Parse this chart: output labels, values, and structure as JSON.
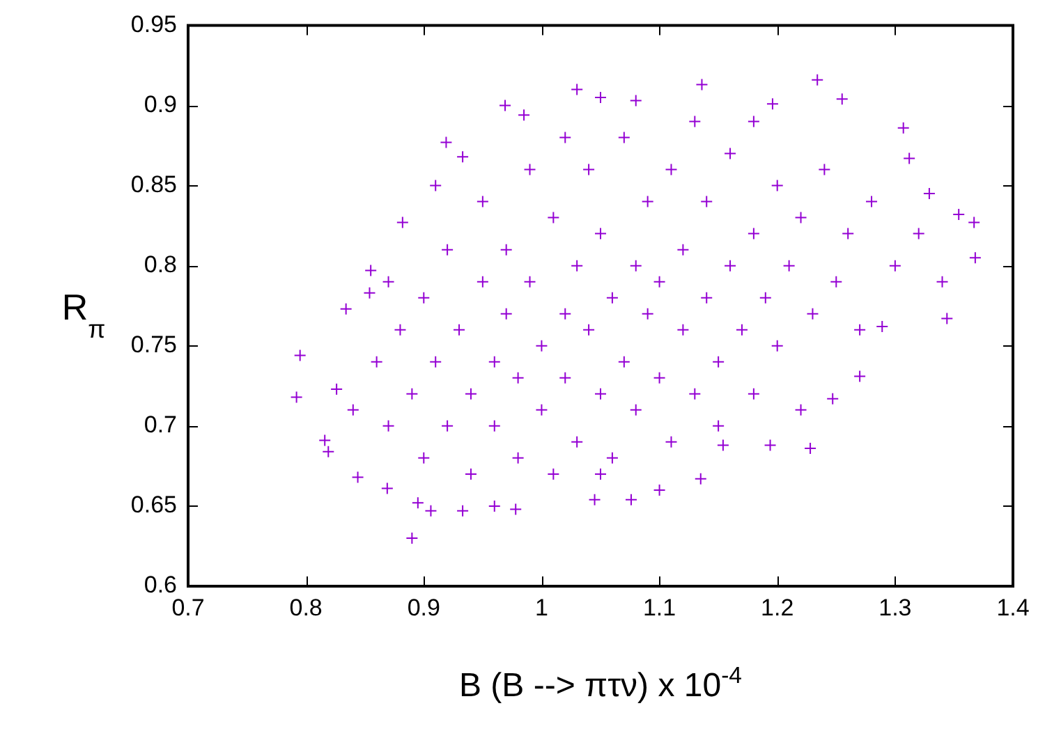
{
  "chart_data": {
    "type": "scatter",
    "xlabel": "B (B --> πτν) x 10$^{-4}$",
    "ylabel": "R$_{π}$",
    "marker": "cross",
    "grid": false,
    "legend": false,
    "xlim": [
      0.7,
      1.4
    ],
    "xticks": [
      0.7,
      0.8,
      0.9,
      1,
      1.1,
      1.2,
      1.3,
      1.4
    ],
    "ylim": [
      0.6,
      0.95
    ],
    "yticks": [
      0.6,
      0.65,
      0.7,
      0.75,
      0.8,
      0.85,
      0.9,
      0.95
    ],
    "series": [
      {
        "color": "#9400d3",
        "x": [
          0.795,
          0.792,
          0.816,
          0.819,
          0.89,
          0.895,
          0.906,
          0.933,
          0.978,
          1.045,
          1.076,
          1.135,
          1.154,
          1.194,
          1.228,
          1.247,
          1.27,
          1.289,
          1.344,
          1.368,
          1.367,
          1.354,
          1.329,
          1.312,
          1.307,
          1.255,
          1.234,
          1.196,
          1.136,
          1.08,
          1.05,
          1.03,
          0.969,
          0.985,
          0.919,
          0.933,
          0.882,
          0.855,
          0.834,
          0.844,
          0.869,
          0.826,
          0.854,
          0.86,
          0.87,
          0.88,
          0.89,
          0.9,
          0.9,
          0.91,
          0.92,
          0.92,
          0.93,
          0.94,
          0.94,
          0.95,
          0.95,
          0.96,
          0.96,
          0.97,
          0.97,
          0.98,
          0.98,
          0.99,
          0.99,
          1,
          1,
          1.01,
          1.01,
          1.02,
          1.02,
          1.03,
          1.03,
          1.04,
          1.04,
          1.05,
          1.05,
          1.06,
          1.06,
          1.07,
          1.07,
          1.08,
          1.08,
          1.09,
          1.09,
          1.1,
          1.1,
          1.11,
          1.11,
          1.12,
          1.12,
          1.13,
          1.13,
          1.14,
          1.14,
          1.15,
          1.15,
          1.16,
          1.16,
          1.17,
          1.18,
          1.18,
          1.19,
          1.2,
          1.2,
          1.21,
          1.22,
          1.22,
          1.23,
          1.24,
          1.25,
          1.26,
          1.27,
          1.28,
          1.3,
          1.32,
          1.34,
          0.84,
          0.87,
          0.91,
          1.02,
          1.05,
          1.1,
          0.96,
          1.18
        ],
        "values": [
          0.744,
          0.718,
          0.691,
          0.684,
          0.63,
          0.652,
          0.647,
          0.647,
          0.648,
          0.654,
          0.654,
          0.667,
          0.688,
          0.688,
          0.686,
          0.717,
          0.731,
          0.762,
          0.767,
          0.805,
          0.827,
          0.832,
          0.845,
          0.867,
          0.886,
          0.904,
          0.916,
          0.901,
          0.913,
          0.903,
          0.905,
          0.91,
          0.9,
          0.894,
          0.877,
          0.868,
          0.827,
          0.797,
          0.773,
          0.668,
          0.661,
          0.723,
          0.783,
          0.74,
          0.7,
          0.76,
          0.72,
          0.68,
          0.78,
          0.74,
          0.7,
          0.81,
          0.76,
          0.72,
          0.67,
          0.79,
          0.84,
          0.74,
          0.7,
          0.77,
          0.81,
          0.68,
          0.73,
          0.86,
          0.79,
          0.75,
          0.71,
          0.83,
          0.67,
          0.77,
          0.73,
          0.8,
          0.69,
          0.86,
          0.76,
          0.72,
          0.82,
          0.78,
          0.68,
          0.74,
          0.88,
          0.8,
          0.71,
          0.77,
          0.84,
          0.73,
          0.79,
          0.69,
          0.86,
          0.76,
          0.81,
          0.72,
          0.89,
          0.78,
          0.84,
          0.74,
          0.7,
          0.8,
          0.87,
          0.76,
          0.82,
          0.72,
          0.78,
          0.85,
          0.75,
          0.8,
          0.71,
          0.83,
          0.77,
          0.86,
          0.79,
          0.82,
          0.76,
          0.84,
          0.8,
          0.82,
          0.79,
          0.71,
          0.79,
          0.85,
          0.88,
          0.67,
          0.66,
          0.65,
          0.89
        ]
      }
    ]
  }
}
